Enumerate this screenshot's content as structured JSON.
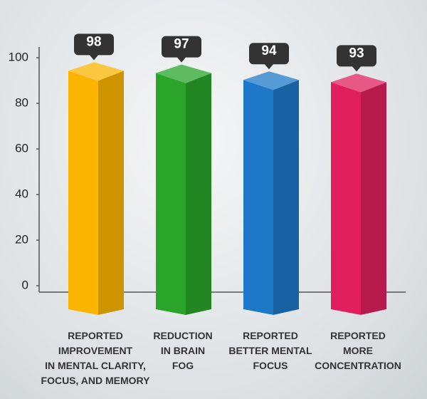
{
  "chart_data": {
    "type": "bar3d",
    "categories": [
      "REPORTED\nIMPROVEMENT\nIN MENTAL CLARITY,\nFOCUS, AND MEMORY",
      "REDUCTION\nIN BRAIN\nFOG",
      "REPORTED\nBETTER MENTAL\nFOCUS",
      "REPORTED\nMORE\nCONCENTRATION"
    ],
    "values": [
      98,
      97,
      94,
      93
    ],
    "colors": [
      "#fbb500",
      "#2aa52a",
      "#1e78c8",
      "#e0205e"
    ],
    "ylim": [
      0,
      100
    ],
    "yticks": [
      0,
      20,
      40,
      60,
      80,
      100
    ]
  }
}
